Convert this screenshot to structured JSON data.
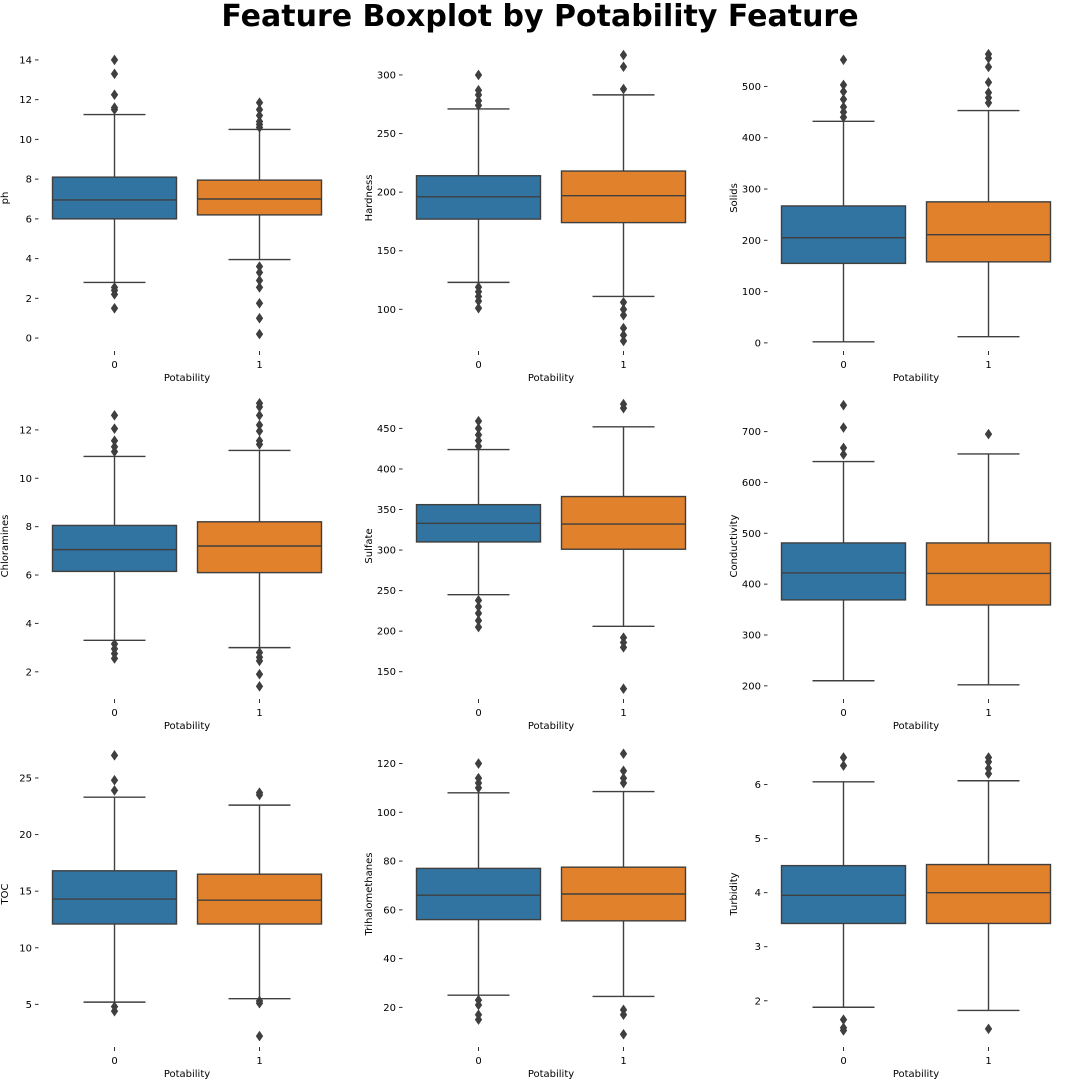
{
  "title": "Feature Boxplot by Potability Feature",
  "colors": {
    "class_0": "#3274a1",
    "class_1": "#e1812c",
    "line": "#3f3f3f"
  },
  "chart_data": [
    {
      "type": "box",
      "ylabel": "ph",
      "xlabel": "Potability",
      "categories": [
        "0",
        "1"
      ],
      "yticks": [
        0,
        2,
        4,
        6,
        8,
        10,
        12,
        14
      ],
      "ylim": [
        -0.5,
        14.6
      ],
      "boxes": [
        {
          "q1": 6.0,
          "median": 6.95,
          "q3": 8.1,
          "whislo": 2.8,
          "whishi": 11.25,
          "outliers": [
            11.5,
            11.6,
            12.25,
            13.3,
            14.0,
            2.55,
            2.4,
            2.2,
            1.5
          ]
        },
        {
          "q1": 6.2,
          "median": 7.0,
          "q3": 7.95,
          "whislo": 3.95,
          "whishi": 10.5,
          "outliers": [
            10.6,
            10.75,
            10.9,
            11.2,
            11.5,
            11.85,
            3.6,
            3.3,
            2.9,
            2.55,
            1.75,
            1.0,
            0.2
          ]
        }
      ]
    },
    {
      "type": "box",
      "ylabel": "Hardness",
      "xlabel": "Potability",
      "categories": [
        "0",
        "1"
      ],
      "yticks": [
        100,
        150,
        200,
        250,
        300
      ],
      "ylim": [
        67,
        323
      ],
      "boxes": [
        {
          "q1": 177,
          "median": 196,
          "q3": 214,
          "whislo": 123,
          "whishi": 271,
          "outliers": [
            274,
            278,
            283,
            287,
            300,
            119,
            115,
            111,
            107,
            101
          ]
        },
        {
          "q1": 174,
          "median": 197,
          "q3": 218,
          "whislo": 111,
          "whishi": 283,
          "outliers": [
            288,
            307,
            317,
            106,
            100,
            95,
            84,
            78,
            73
          ]
        }
      ]
    },
    {
      "type": "box",
      "ylabel": "Solids",
      "xlabel": "Potability",
      "categories": [
        "0",
        "1"
      ],
      "yticks": [
        0,
        100,
        200,
        300,
        400,
        500
      ],
      "ylim": [
        -10,
        575
      ],
      "boxes": [
        {
          "q1": 155,
          "median": 205,
          "q3": 267,
          "whislo": 2,
          "whishi": 432,
          "outliers": [
            440,
            450,
            460,
            475,
            490,
            503,
            552
          ]
        },
        {
          "q1": 158,
          "median": 211,
          "q3": 275,
          "whislo": 12,
          "whishi": 453,
          "outliers": [
            468,
            478,
            488,
            508,
            538,
            555,
            563
          ]
        }
      ]
    },
    {
      "type": "box",
      "ylabel": "Chloramines",
      "xlabel": "Potability",
      "categories": [
        "0",
        "1"
      ],
      "yticks": [
        2,
        4,
        6,
        8,
        10,
        12
      ],
      "ylim": [
        1.0,
        13.4
      ],
      "boxes": [
        {
          "q1": 6.15,
          "median": 7.05,
          "q3": 8.05,
          "whislo": 3.3,
          "whishi": 10.9,
          "outliers": [
            11.1,
            11.3,
            11.55,
            12.05,
            12.6,
            3.15,
            2.95,
            2.75,
            2.55
          ]
        },
        {
          "q1": 6.1,
          "median": 7.2,
          "q3": 8.2,
          "whislo": 3.0,
          "whishi": 11.15,
          "outliers": [
            11.4,
            11.55,
            11.95,
            12.2,
            12.6,
            12.95,
            13.1,
            2.8,
            2.6,
            2.45,
            1.9,
            1.4
          ]
        }
      ]
    },
    {
      "type": "box",
      "ylabel": "Sulfate",
      "xlabel": "Potability",
      "categories": [
        "0",
        "1"
      ],
      "yticks": [
        150,
        200,
        250,
        300,
        350,
        400,
        450
      ],
      "ylim": [
        120,
        490
      ],
      "boxes": [
        {
          "q1": 310,
          "median": 333,
          "q3": 356,
          "whislo": 245,
          "whishi": 424,
          "outliers": [
            428,
            435,
            442,
            450,
            459,
            238,
            230,
            222,
            213,
            205
          ]
        },
        {
          "q1": 301,
          "median": 332,
          "q3": 366,
          "whislo": 206,
          "whishi": 452,
          "outliers": [
            475,
            480,
            192,
            186,
            180,
            129
          ]
        }
      ]
    },
    {
      "type": "box",
      "ylabel": "Conductivity",
      "xlabel": "Potability",
      "categories": [
        "0",
        "1"
      ],
      "yticks": [
        200,
        300,
        400,
        500,
        600,
        700
      ],
      "ylim": [
        180,
        770
      ],
      "boxes": [
        {
          "q1": 369,
          "median": 422,
          "q3": 481,
          "whislo": 210,
          "whishi": 641,
          "outliers": [
            655,
            668,
            708,
            752
          ]
        },
        {
          "q1": 359,
          "median": 421,
          "q3": 481,
          "whislo": 202,
          "whishi": 656,
          "outliers": [
            695
          ]
        }
      ]
    },
    {
      "type": "box",
      "ylabel": "TOC",
      "xlabel": "Potability",
      "categories": [
        "0",
        "1"
      ],
      "yticks": [
        5,
        10,
        15,
        20,
        25
      ],
      "ylim": [
        1.5,
        28
      ],
      "boxes": [
        {
          "q1": 12.1,
          "median": 14.3,
          "q3": 16.8,
          "whislo": 5.2,
          "whishi": 23.3,
          "outliers": [
            23.9,
            24.8,
            27.0,
            4.8,
            4.4
          ]
        },
        {
          "q1": 12.1,
          "median": 14.2,
          "q3": 16.5,
          "whislo": 5.5,
          "whishi": 22.6,
          "outliers": [
            23.5,
            23.7,
            5.3,
            5.1,
            2.2
          ]
        }
      ]
    },
    {
      "type": "box",
      "ylabel": "Trihalomethanes",
      "xlabel": "Potability",
      "categories": [
        "0",
        "1"
      ],
      "yticks": [
        20,
        40,
        60,
        80,
        100,
        120
      ],
      "ylim": [
        5,
        128
      ],
      "boxes": [
        {
          "q1": 56,
          "median": 66,
          "q3": 77,
          "whislo": 25,
          "whishi": 108,
          "outliers": [
            110,
            112,
            114,
            120,
            23,
            21,
            17,
            15
          ]
        },
        {
          "q1": 55.5,
          "median": 66.5,
          "q3": 77.5,
          "whislo": 24.5,
          "whishi": 108.5,
          "outliers": [
            112,
            114,
            117,
            124,
            19,
            17,
            9
          ]
        }
      ]
    },
    {
      "type": "box",
      "ylabel": "Turbidity",
      "xlabel": "Potability",
      "categories": [
        "0",
        "1"
      ],
      "yticks": [
        2,
        3,
        4,
        5,
        6
      ],
      "ylim": [
        1.2,
        6.75
      ],
      "boxes": [
        {
          "q1": 3.43,
          "median": 3.95,
          "q3": 4.5,
          "whislo": 1.88,
          "whishi": 6.05,
          "outliers": [
            6.35,
            6.5,
            1.65,
            1.5,
            1.45
          ]
        },
        {
          "q1": 3.43,
          "median": 4.0,
          "q3": 4.52,
          "whislo": 1.82,
          "whishi": 6.07,
          "outliers": [
            6.2,
            6.3,
            6.42,
            6.5,
            1.48
          ]
        }
      ]
    }
  ]
}
